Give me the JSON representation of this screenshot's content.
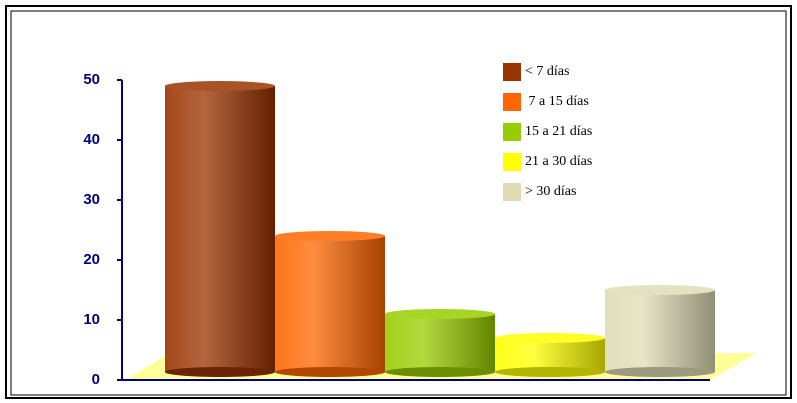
{
  "chart_data": {
    "type": "bar",
    "categories": [
      null
    ],
    "series": [
      {
        "name": "< 7 días",
        "color": "#993300",
        "values": [
          49
        ]
      },
      {
        "name": " 7 a 15 días",
        "color": "#ff6600",
        "values": [
          24
        ]
      },
      {
        "name": "15 a 21 días",
        "color": "#99cc00",
        "values": [
          11
        ]
      },
      {
        "name": "21 a 30 días",
        "color": "#ffff00",
        "values": [
          7
        ]
      },
      {
        "name": "> 30 días",
        "color": "#dedcb4",
        "values": [
          15
        ]
      }
    ],
    "ylim": [
      0,
      50
    ],
    "yticks": [
      0,
      10,
      20,
      30,
      40,
      50
    ]
  }
}
